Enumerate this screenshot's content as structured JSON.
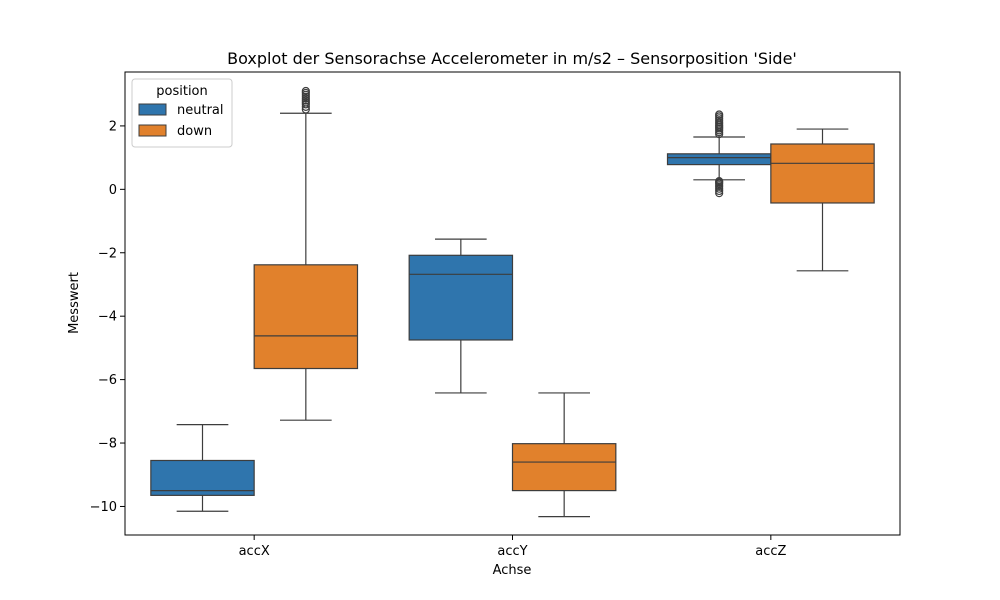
{
  "chart_data": {
    "type": "boxplot",
    "title": "Boxplot der Sensorachse Accelerometer in m/s2 – Sensorposition 'Side'",
    "xlabel": "Achse",
    "ylabel": "Messwert",
    "categories": [
      "accX",
      "accY",
      "accZ"
    ],
    "ylim": [
      -10.9,
      3.7
    ],
    "yticks": [
      -10,
      -8,
      -6,
      -4,
      -2,
      0,
      2
    ],
    "ytick_labels": [
      "−10",
      "−8",
      "−6",
      "−4",
      "−2",
      "0",
      "2"
    ],
    "grid": false,
    "legend": {
      "title": "position",
      "placement": "top-left"
    },
    "series": [
      {
        "name": "neutral",
        "color": "#2f75ad",
        "boxes": [
          {
            "category": "accX",
            "whisker_low": -10.15,
            "q1": -9.65,
            "median": -9.5,
            "q3": -8.55,
            "whisker_high": -7.42,
            "outliers": []
          },
          {
            "category": "accY",
            "whisker_low": -6.42,
            "q1": -4.75,
            "median": -2.68,
            "q3": -2.08,
            "whisker_high": -1.57,
            "outliers": []
          },
          {
            "category": "accZ",
            "whisker_low": 0.3,
            "q1": 0.78,
            "median": 1.0,
            "q3": 1.12,
            "whisker_high": 1.65,
            "outliers": [
              -0.12,
              -0.05,
              0.02,
              0.08,
              0.13,
              0.18,
              0.22,
              0.26,
              1.74,
              1.8,
              1.86,
              1.92,
              1.97,
              2.02,
              2.07,
              2.12,
              2.18,
              2.24,
              2.3,
              2.36
            ]
          }
        ]
      },
      {
        "name": "down",
        "color": "#e1812c",
        "boxes": [
          {
            "category": "accX",
            "whisker_low": -7.28,
            "q1": -5.65,
            "median": -4.62,
            "q3": -2.38,
            "whisker_high": 2.4,
            "outliers": [
              2.52,
              2.6,
              2.68,
              2.74,
              2.8,
              2.86,
              2.92,
              2.98,
              3.04,
              3.1
            ]
          },
          {
            "category": "accY",
            "whisker_low": -10.32,
            "q1": -9.5,
            "median": -8.6,
            "q3": -8.02,
            "whisker_high": -6.42,
            "outliers": []
          },
          {
            "category": "accZ",
            "whisker_low": -2.57,
            "q1": -0.43,
            "median": 0.82,
            "q3": 1.43,
            "whisker_high": 1.9,
            "outliers": []
          }
        ]
      }
    ]
  }
}
